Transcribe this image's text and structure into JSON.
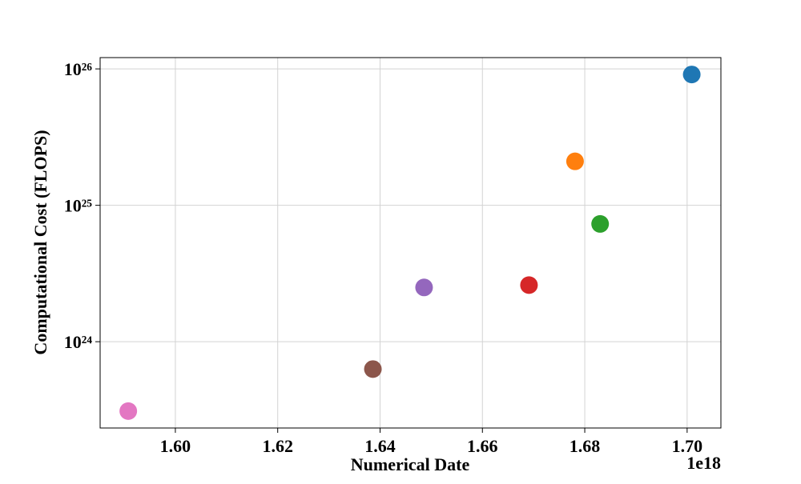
{
  "chart_data": {
    "type": "scatter",
    "x_label": "Numerical Date",
    "y_label": "Computational Cost (FLOPS)",
    "x_offset_label": "1e18",
    "x": [
      1.7009,
      1.6781,
      1.683,
      1.6691,
      1.6486,
      1.6386,
      1.5908
    ],
    "values": [
      9.1e+25,
      2.1e+25,
      7.3e+24,
      2.6e+24,
      2.5e+24,
      6.3e+23,
      3.1e+23
    ],
    "colors": [
      "#1f77b4",
      "#ff7f0e",
      "#2ca02c",
      "#d62728",
      "#9467bd",
      "#8c564b",
      "#e377c2"
    ],
    "xlim": [
      1.5853,
      1.7066
    ],
    "xticks": [
      {
        "value": 1.6,
        "label": "1.60"
      },
      {
        "value": 1.62,
        "label": "1.62"
      },
      {
        "value": 1.64,
        "label": "1.64"
      },
      {
        "value": 1.66,
        "label": "1.66"
      },
      {
        "value": 1.68,
        "label": "1.68"
      },
      {
        "value": 1.7,
        "label": "1.70"
      }
    ],
    "ylim": [
      2.33e+23,
      1.21e+26
    ],
    "yticks": [
      {
        "value": 1e+24,
        "label": "10²⁴"
      },
      {
        "value": 1e+25,
        "label": "10²⁵"
      },
      {
        "value": 1e+26,
        "label": "10²⁶"
      }
    ],
    "y_log": true,
    "grid": true
  }
}
